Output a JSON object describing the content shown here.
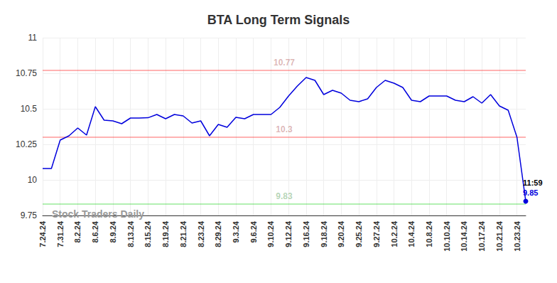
{
  "chart_data": {
    "type": "line",
    "title": "BTA Long Term Signals",
    "watermark": "Stock Traders Daily",
    "categories": [
      "7.24.24",
      null,
      "7.31.24",
      null,
      "8.2.24",
      null,
      "8.6.24",
      null,
      "8.9.24",
      null,
      "8.13.24",
      null,
      "8.15.24",
      null,
      "8.19.24",
      null,
      "8.21.24",
      null,
      "8.23.24",
      null,
      "8.29.24",
      null,
      "9.3.24",
      null,
      "9.6.24",
      null,
      "9.10.24",
      null,
      "9.12.24",
      null,
      "9.16.24",
      null,
      "9.18.24",
      null,
      "9.20.24",
      null,
      "9.25.24",
      null,
      "9.27.24",
      null,
      "10.2.24",
      null,
      "10.4.24",
      null,
      "10.8.24",
      null,
      "10.10.24",
      null,
      "10.14.24",
      null,
      "10.17.24",
      null,
      "10.21.24",
      null,
      "10.23.24",
      null
    ],
    "values": [
      10.08,
      10.08,
      10.28,
      10.31,
      10.365,
      10.315,
      10.515,
      10.42,
      10.415,
      10.395,
      10.435,
      10.435,
      10.437,
      10.46,
      10.43,
      10.46,
      10.45,
      10.4,
      10.415,
      10.31,
      10.39,
      10.37,
      10.44,
      10.43,
      10.46,
      10.46,
      10.46,
      10.51,
      10.59,
      10.66,
      10.72,
      10.7,
      10.6,
      10.63,
      10.61,
      10.56,
      10.55,
      10.57,
      10.65,
      10.7,
      10.68,
      10.65,
      10.56,
      10.55,
      10.59,
      10.59,
      10.59,
      10.56,
      10.55,
      10.585,
      10.54,
      10.6,
      10.52,
      10.49,
      10.3,
      9.85
    ],
    "color": "#0000dd",
    "ylim": [
      9.75,
      11
    ],
    "yticks": [
      9.75,
      10,
      10.25,
      10.5,
      10.75,
      11
    ],
    "grid": true,
    "reference_lines": [
      {
        "value": 10.77,
        "color": "#ff0000"
      },
      {
        "value": 10.3,
        "color": "#ff0000"
      },
      {
        "value": 9.83,
        "color": "#00cc00"
      }
    ],
    "last_point_label": "11:59"
  }
}
